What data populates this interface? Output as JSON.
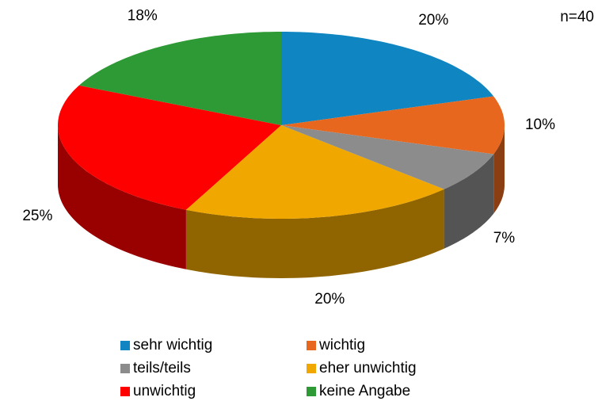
{
  "chart_data": {
    "type": "pie",
    "annotation": "n=40",
    "categories": [
      "sehr wichtig",
      "wichtig",
      "teils/teils",
      "eher unwichtig",
      "unwichtig",
      "keine Angabe"
    ],
    "values": [
      20,
      10,
      7,
      20,
      25,
      18
    ],
    "value_labels": [
      "20%",
      "10%",
      "7%",
      "20%",
      "25%",
      "18%"
    ],
    "colors": [
      "#0f86c1",
      "#e8671e",
      "#8c8c8c",
      "#f0a800",
      "#ff0000",
      "#2e9a35"
    ],
    "legend": "bottom"
  }
}
